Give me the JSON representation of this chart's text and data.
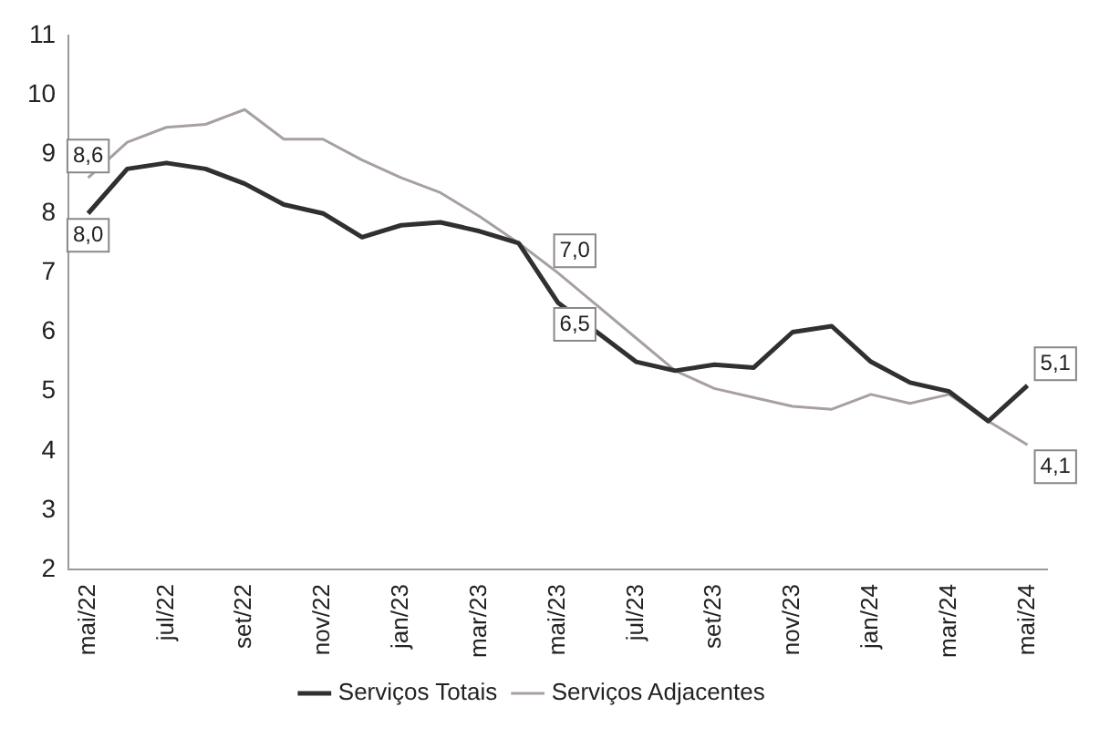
{
  "chart_data": {
    "type": "line",
    "categories": [
      "mai/22",
      null,
      "jul/22",
      null,
      "set/22",
      null,
      "nov/22",
      null,
      "jan/23",
      null,
      "mar/23",
      null,
      "mai/23",
      null,
      "jul/23",
      null,
      "set/23",
      null,
      "nov/23",
      null,
      "jan/24",
      null,
      "mar/24",
      null,
      "mai/24"
    ],
    "series": [
      {
        "name": "Serviços Totais",
        "color": "#303030",
        "values": [
          8.0,
          8.75,
          8.85,
          8.75,
          8.5,
          8.15,
          8.0,
          7.6,
          7.8,
          7.85,
          7.7,
          7.5,
          6.5,
          6.0,
          5.5,
          5.35,
          5.45,
          5.4,
          6.0,
          6.1,
          5.5,
          5.15,
          5.0,
          4.5,
          5.1
        ],
        "value_labels": [
          "8,0",
          null,
          null,
          null,
          null,
          null,
          null,
          null,
          null,
          null,
          null,
          null,
          "6,5",
          null,
          null,
          null,
          null,
          null,
          null,
          null,
          null,
          null,
          null,
          null,
          "5,1"
        ]
      },
      {
        "name": "Serviços Adjacentes",
        "color": "#a8a0a0",
        "values": [
          8.6,
          9.2,
          9.45,
          9.5,
          9.75,
          9.25,
          9.25,
          8.9,
          8.6,
          8.35,
          7.95,
          7.5,
          7.0,
          6.45,
          5.9,
          5.35,
          5.05,
          4.9,
          4.75,
          4.7,
          4.95,
          4.8,
          4.95,
          4.5,
          4.1
        ],
        "value_labels": [
          "8,6",
          null,
          null,
          null,
          null,
          null,
          null,
          null,
          null,
          null,
          null,
          null,
          "7,0",
          null,
          null,
          null,
          null,
          null,
          null,
          null,
          null,
          null,
          null,
          null,
          "4,1"
        ]
      }
    ],
    "ylim": [
      2,
      11
    ],
    "yticks": [
      2,
      3,
      4,
      5,
      6,
      7,
      8,
      9,
      10,
      11
    ],
    "grid": false,
    "legend": "bottom",
    "marker": "none",
    "line_style": "solid"
  }
}
